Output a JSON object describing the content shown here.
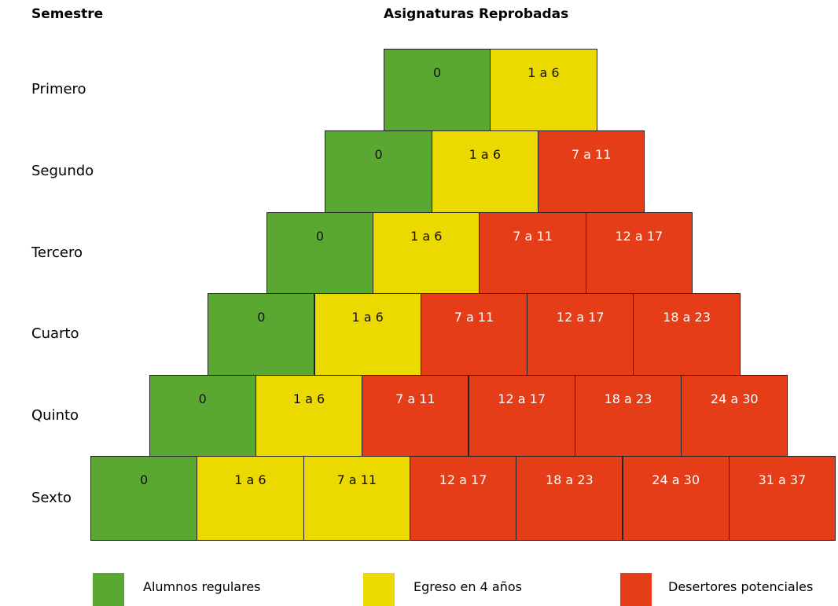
{
  "header": {
    "left": "Semestre",
    "title": "Asignaturas Reprobadas"
  },
  "rows": [
    {
      "label": "Primero",
      "cells": [
        {
          "text": "0",
          "color": "#5aa832"
        },
        {
          "text": "1 a 6",
          "color": "#ecd900"
        }
      ]
    },
    {
      "label": "Segundo",
      "cells": [
        {
          "text": "0",
          "color": "#5aa832"
        },
        {
          "text": "1 a 6",
          "color": "#ecd900"
        },
        {
          "text": "7 a 11",
          "color": "#e43d17"
        }
      ]
    },
    {
      "label": "Tercero",
      "cells": [
        {
          "text": "0",
          "color": "#5aa832"
        },
        {
          "text": "1 a 6",
          "color": "#ecd900"
        },
        {
          "text": "7 a 11",
          "color": "#e43d17"
        },
        {
          "text": "12 a 17",
          "color": "#e43d17"
        }
      ]
    },
    {
      "label": "Cuarto",
      "cells": [
        {
          "text": "0",
          "color": "#5aa832"
        },
        {
          "text": "1 a 6",
          "color": "#ecd900"
        },
        {
          "text": "7 a 11",
          "color": "#e43d17"
        },
        {
          "text": "12 a 17",
          "color": "#e43d17"
        },
        {
          "text": "18 a 23",
          "color": "#e43d17"
        }
      ]
    },
    {
      "label": "Quinto",
      "cells": [
        {
          "text": "0",
          "color": "#5aa832"
        },
        {
          "text": "1 a 6",
          "color": "#ecd900"
        },
        {
          "text": "7 a 11",
          "color": "#e43d17"
        },
        {
          "text": "12 a 17",
          "color": "#e43d17"
        },
        {
          "text": "18 a 23",
          "color": "#e43d17"
        },
        {
          "text": "24 a 30",
          "color": "#e43d17"
        }
      ]
    },
    {
      "label": "Sexto",
      "cells": [
        {
          "text": "0",
          "color": "#5aa832"
        },
        {
          "text": "1 a 6",
          "color": "#ecd900"
        },
        {
          "text": "7 a 11",
          "color": "#ecd900"
        },
        {
          "text": "12 a 17",
          "color": "#e43d17"
        },
        {
          "text": "18 a 23",
          "color": "#e43d17"
        },
        {
          "text": "24 a 30",
          "color": "#e43d17"
        },
        {
          "text": "31 a 37",
          "color": "#e43d17"
        }
      ]
    }
  ],
  "legend": [
    {
      "label": "Alumnos regulares",
      "color": "#5aa832"
    },
    {
      "label": "Egreso en 4 años",
      "color": "#ecd900"
    },
    {
      "label": "Desertores potenciales",
      "color": "#e43d17"
    }
  ]
}
